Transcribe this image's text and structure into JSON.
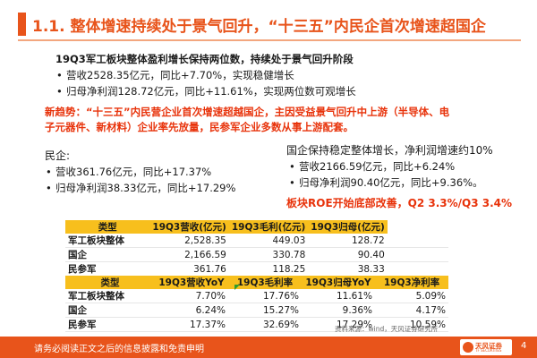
{
  "title": "1.1. 整体增速持续处于景气回升，“十三五”内民企首次增速超国企",
  "headline": "19Q3军工板块整体盈利增长保持两位数，持续处于景气回升阶段",
  "sector_bullets": [
    "营收2528.35亿元，同比+7.70%，实现稳健增长",
    "归母净利润128.72亿元，同比+11.61%，实现两位数可观增长"
  ],
  "new_trend_line1": "新趋势：“十三五”内民营企业首次增速超越国企，主因受益景气回升中上游（半导体、电",
  "new_trend_line2": "子元器件、新材料）企业率先放量，民参军企业多数从事上游配套。",
  "private": {
    "label": "民企:",
    "bullets": [
      "营收361.76亿元，同比+17.37%",
      "归母净利润38.33亿元，同比+17.29%"
    ]
  },
  "state": {
    "label": "国企保持稳定整体增长，净利润增速约10%",
    "bullets": [
      "营收2166.59亿元，同比+6.24%",
      "归母净利润90.40亿元，同比+9.36%。"
    ],
    "roe_note": "板块ROE开始底部改善，Q2 3.3%/Q3 3.4%"
  },
  "table": {
    "header1": [
      "类型",
      "19Q3营收(亿元)",
      "19Q3毛利(亿元)",
      "19Q3归母(亿元)",
      ""
    ],
    "rows1": [
      [
        "军工板块整体",
        "2,528.35",
        "449.03",
        "128.72",
        ""
      ],
      [
        "国企",
        "2,166.59",
        "330.78",
        "90.40",
        ""
      ],
      [
        "民参军",
        "361.76",
        "118.25",
        "38.33",
        ""
      ]
    ],
    "header2": [
      "类型",
      "19Q3营收YoY",
      "19Q3毛利率",
      "19Q3归母YoY",
      "19Q3净利率"
    ],
    "rows2": [
      [
        "军工板块整体",
        "7.70%",
        "17.76%",
        "11.61%",
        "5.09%"
      ],
      [
        "国企",
        "6.24%",
        "15.27%",
        "9.36%",
        "4.17%"
      ],
      [
        "民参军",
        "17.37%",
        "32.69%",
        "17.29%",
        "10.59%"
      ]
    ]
  },
  "source": "资料来源：wind，天风证券研究所",
  "footer": {
    "disclaimer": "请务必阅读正文之后的信息披露和免责申明",
    "logo_text": "天风证券",
    "logo_sub": "TF SECURITIES",
    "page": "4"
  },
  "colors": {
    "accent": "#e8541b",
    "table_header": "#f7bf1d",
    "highlight": "#e8330b"
  }
}
